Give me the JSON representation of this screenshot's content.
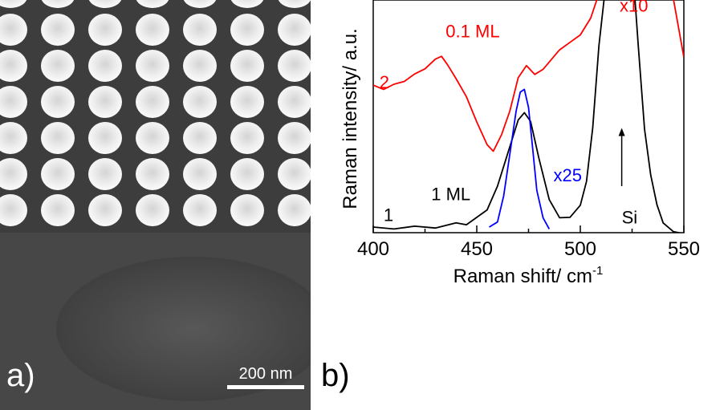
{
  "panels": {
    "a_label": "a)",
    "b_label": "b)"
  },
  "sem_image": {
    "scale_bar_text": "200 nm",
    "particle_rows": 6,
    "particle_columns": 7
  },
  "chart_data": {
    "type": "line",
    "title": "",
    "xlabel": "Raman shift/ cm",
    "xlabel_superscript": "-1",
    "ylabel": "Raman intensity/ a.u.",
    "xlim": [
      400,
      550
    ],
    "xticks": [
      400,
      450,
      500,
      550
    ],
    "y_tick_labels": false,
    "grid": false,
    "series": [
      {
        "name": "2",
        "color": "#ff0000",
        "x": [
          400,
          405,
          410,
          415,
          420,
          425,
          430,
          433,
          436,
          440,
          445,
          450,
          455,
          458,
          462,
          466,
          470,
          474,
          478,
          482,
          486,
          490,
          495,
          500,
          505,
          510,
          520,
          530,
          540,
          545,
          550
        ],
        "y": [
          0.63,
          0.62,
          0.64,
          0.65,
          0.68,
          0.7,
          0.75,
          0.76,
          0.72,
          0.66,
          0.58,
          0.48,
          0.38,
          0.35,
          0.42,
          0.52,
          0.67,
          0.72,
          0.68,
          0.7,
          0.74,
          0.79,
          0.82,
          0.85,
          0.92,
          1.05,
          1.05,
          1.05,
          1.05,
          1.0,
          0.75
        ]
      },
      {
        "name": "1",
        "color": "#000000",
        "x": [
          400,
          410,
          420,
          430,
          440,
          445,
          450,
          455,
          460,
          465,
          470,
          473,
          476,
          480,
          485,
          490,
          495,
          500,
          503,
          506,
          509,
          512,
          514,
          520,
          526,
          528,
          531,
          534,
          537,
          540,
          545,
          550
        ],
        "y": [
          0.02,
          0.02,
          0.03,
          0.02,
          0.04,
          0.03,
          0.07,
          0.1,
          0.2,
          0.34,
          0.48,
          0.52,
          0.48,
          0.32,
          0.14,
          0.06,
          0.07,
          0.12,
          0.22,
          0.45,
          0.8,
          1.05,
          1.05,
          1.05,
          1.05,
          0.8,
          0.45,
          0.25,
          0.12,
          0.04,
          0.0,
          0.0
        ]
      },
      {
        "name": "x25",
        "color": "#0000ff",
        "x": [
          456,
          460,
          463,
          466,
          469,
          471,
          473,
          475,
          477,
          479,
          482,
          485
        ],
        "y": [
          0.02,
          0.05,
          0.16,
          0.34,
          0.52,
          0.6,
          0.62,
          0.54,
          0.36,
          0.18,
          0.06,
          0.02
        ]
      }
    ],
    "annotations": [
      {
        "text": "x10",
        "x": 519,
        "y": 0.95,
        "color": "#ff0000"
      },
      {
        "text": "0.1 ML",
        "x": 435,
        "y": 0.84,
        "color": "#ff0000"
      },
      {
        "text": "2",
        "x": 403,
        "y": 0.62,
        "color": "#ff0000"
      },
      {
        "text": "x25",
        "x": 487,
        "y": 0.22,
        "color": "#0000ff"
      },
      {
        "text": "1 ML",
        "x": 428,
        "y": 0.14,
        "color": "#000000"
      },
      {
        "text": "1",
        "x": 405,
        "y": 0.05,
        "color": "#000000"
      },
      {
        "text": "Si",
        "x": 520,
        "y": 0.04,
        "color": "#000000"
      }
    ],
    "si_arrow": {
      "x": 520,
      "y_from": 0.2,
      "y_to": 0.45
    }
  }
}
